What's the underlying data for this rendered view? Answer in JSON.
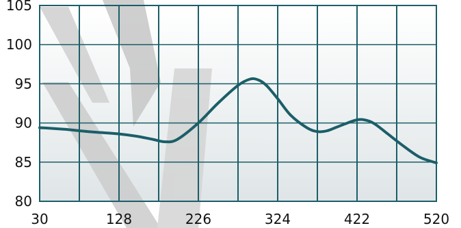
{
  "chart_data": {
    "type": "line",
    "title": "",
    "xlabel": "",
    "ylabel": "",
    "xlim": [
      30,
      520
    ],
    "ylim": [
      80,
      105
    ],
    "x_ticks": [
      "30",
      "128",
      "226",
      "324",
      "422",
      "520"
    ],
    "y_ticks": [
      "105",
      "100",
      "95",
      "90",
      "85",
      "80"
    ],
    "x_tick_values": [
      30,
      128,
      226,
      324,
      422,
      520
    ],
    "y_tick_values": [
      105,
      100,
      95,
      90,
      85,
      80
    ],
    "x_grid_values": [
      30,
      79,
      128,
      177,
      226,
      275,
      324,
      373,
      422,
      471,
      520
    ],
    "y_grid_values": [
      80,
      85,
      90,
      95,
      100,
      105
    ],
    "grid": true,
    "series": [
      {
        "color": "#1b5e68",
        "x": [
          30,
          60,
          90,
          128,
          150,
          170,
          185,
          200,
          226,
          250,
          275,
          290,
          300,
          310,
          324,
          340,
          360,
          373,
          385,
          400,
          422,
          435,
          445,
          460,
          480,
          500,
          520
        ],
        "y": [
          89.4,
          89.2,
          88.9,
          88.6,
          88.3,
          87.9,
          87.6,
          87.9,
          90.0,
          92.5,
          94.8,
          95.6,
          95.5,
          94.8,
          93.1,
          91.0,
          89.4,
          88.9,
          89.0,
          89.6,
          90.4,
          90.3,
          89.8,
          88.6,
          87.0,
          85.6,
          84.9
        ]
      }
    ]
  },
  "colors": {
    "grid": "#1b5e68",
    "plot_bg_top": "#ffffff",
    "plot_bg_bottom": "#dfe5e7",
    "watermark": "#c9c9c9"
  }
}
